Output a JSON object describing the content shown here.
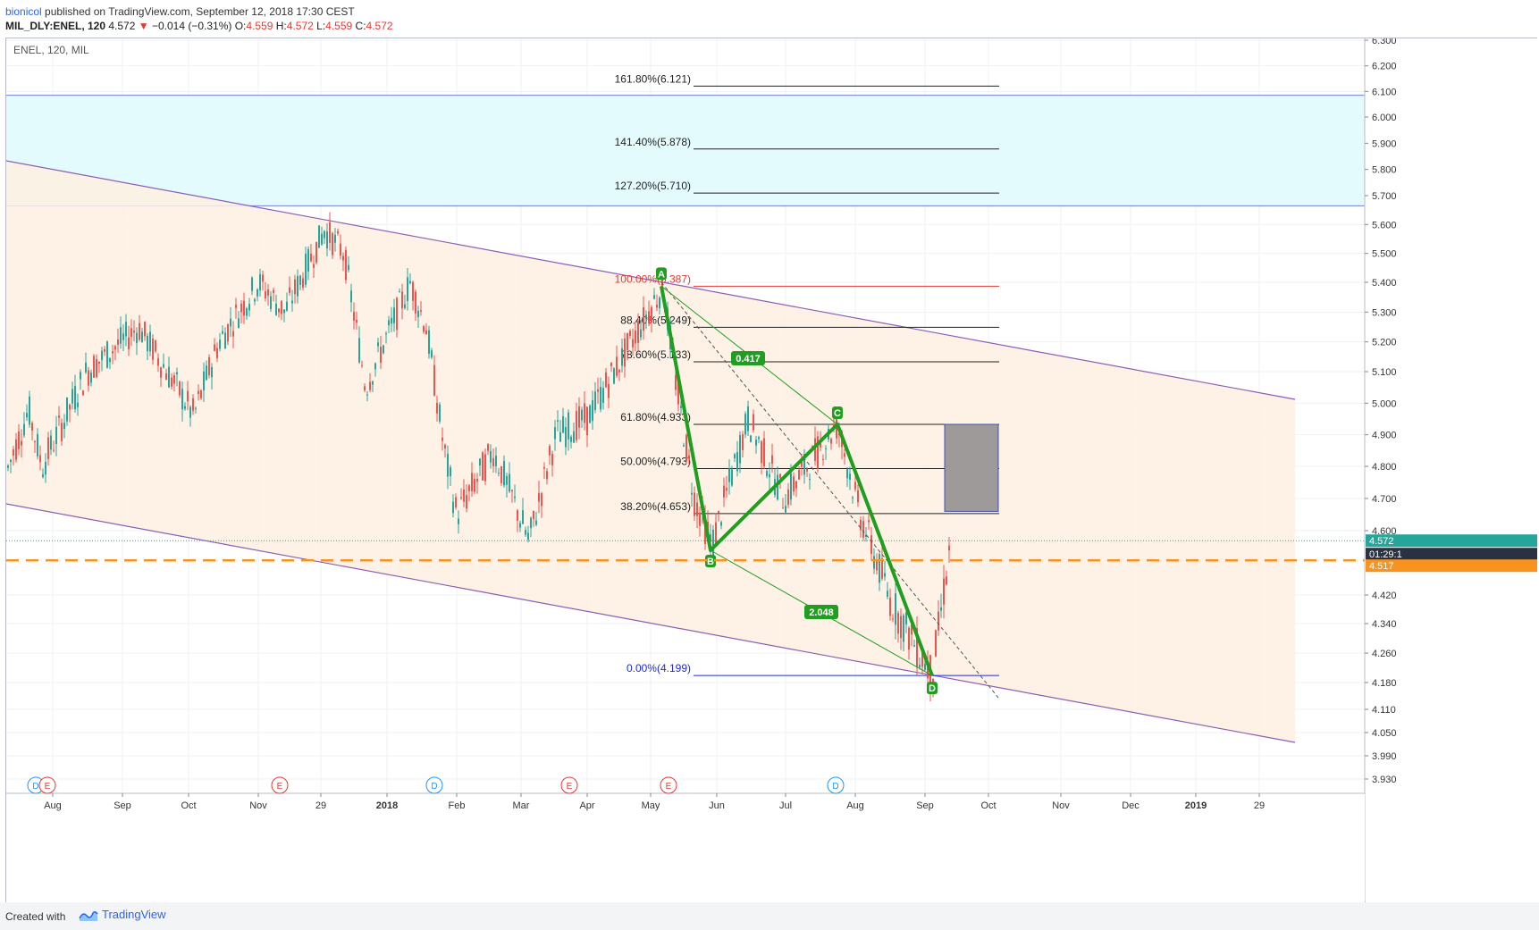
{
  "header": {
    "user": "bionicol",
    "published": " published on TradingView.com, September 12, 2018 17:30 CEST",
    "symbol": "MIL_DLY:ENEL, 120",
    "last": " 4.572 ",
    "arrow": "▼",
    "change": "−0.014 (−0.31%)",
    "o_label": " O:",
    "o_value": "4.559",
    "h_label": " H:",
    "h_value": "4.572",
    "l_label": " L:",
    "l_value": "4.559",
    "c_label": " C:",
    "c_value": "4.572"
  },
  "chart_title": "ENEL, 120, MIL",
  "footer": {
    "created": "Created with",
    "brand": "TradingView"
  },
  "colors": {
    "up": "#26a69a",
    "down": "#ef5350",
    "pattern": "#1f9e1f",
    "channel": "#8e5db4",
    "channel_fill": "#fdf0e1",
    "resistance_fill": "#e3fbfc",
    "support_line": "#f7931e",
    "box_fill": "#9e9a9a",
    "fib_top": "#e53935",
    "fib_bottom": "#1e2adb",
    "price_tag": "#26a69a"
  },
  "chart_data": {
    "type": "candlestick",
    "symbol": "MIL_DLY:ENEL",
    "interval": "120",
    "ylim": [
      3.88,
      6.32
    ],
    "y_ticks": [
      "6.300",
      "6.200",
      "6.100",
      "6.000",
      "5.900",
      "5.800",
      "5.700",
      "5.600",
      "5.500",
      "5.400",
      "5.300",
      "5.200",
      "5.100",
      "5.000",
      "4.900",
      "4.800",
      "4.700",
      "4.600",
      "4.420",
      "4.340",
      "4.260",
      "4.180",
      "4.110",
      "4.050",
      "3.990",
      "3.930"
    ],
    "x_ticks": [
      "Aug",
      "Sep",
      "Oct",
      "Nov",
      "29",
      "2018",
      "Feb",
      "Mar",
      "Apr",
      "May",
      "Jun",
      "Jul",
      "Aug",
      "Sep",
      "Oct",
      "Nov",
      "Dec",
      "2019",
      "29"
    ],
    "x_ticks_bold": [
      "2018",
      "2019"
    ],
    "price_path": [
      [
        "Jul 2017",
        4.78
      ],
      [
        "early Aug",
        4.98
      ],
      [
        "mid Aug",
        4.8
      ],
      [
        "Sep",
        5.1
      ],
      [
        "mid Sep",
        5.25
      ],
      [
        "Oct",
        4.96
      ],
      [
        "mid Oct",
        5.2
      ],
      [
        "Nov",
        5.4
      ],
      [
        "mid Nov",
        5.3
      ],
      [
        "late Nov",
        5.58
      ],
      [
        "early Dec",
        5.5
      ],
      [
        "Dec",
        5.05
      ],
      [
        "late Dec",
        5.4
      ],
      [
        "Jan",
        5.25
      ],
      [
        "mid Jan",
        4.85
      ],
      [
        "Feb",
        4.65
      ],
      [
        "Feb",
        4.85
      ],
      [
        "Mar",
        4.57
      ],
      [
        "Mar",
        4.9
      ],
      [
        "Apr",
        4.95
      ],
      [
        "Apr",
        5.15
      ],
      [
        "May",
        5.387
      ],
      [
        "mid May",
        5.05
      ],
      [
        "late May",
        4.7
      ],
      [
        "Jun",
        4.56
      ],
      [
        "Jun",
        4.95
      ],
      [
        "Jul",
        4.7
      ],
      [
        "late Jul",
        4.933
      ],
      [
        "Aug",
        4.65
      ],
      [
        "Aug",
        4.4
      ],
      [
        "Sep",
        4.199
      ],
      [
        "Sep",
        4.572
      ]
    ],
    "last_price": "4.572",
    "countdown": "01:29:1",
    "support_level": "4.517",
    "harmonic_pattern": {
      "points": [
        {
          "label": "A",
          "value": 5.387
        },
        {
          "label": "B",
          "value": 4.56
        },
        {
          "label": "C",
          "value": 4.933
        },
        {
          "label": "D",
          "value": 4.199
        }
      ],
      "ratios": [
        "0.417",
        "2.048"
      ]
    },
    "fib_levels": [
      {
        "label": "161.80%(6.121)",
        "value": 6.121
      },
      {
        "label": "141.40%(5.878)",
        "value": 5.878
      },
      {
        "label": "127.20%(5.710)",
        "value": 5.71
      },
      {
        "label": "100.00%(5.387)",
        "value": 5.387
      },
      {
        "label": "88.40%(5.249)",
        "value": 5.249
      },
      {
        "label": "78.60%(5.133)",
        "value": 5.133
      },
      {
        "label": "61.80%(4.933)",
        "value": 4.933
      },
      {
        "label": "50.00%(4.793)",
        "value": 4.793
      },
      {
        "label": "38.20%(4.653)",
        "value": 4.653
      },
      {
        "label": "0.00%(4.199)",
        "value": 4.199
      }
    ],
    "resistance_zone": [
      5.665,
      6.085
    ],
    "target_box": [
      4.66,
      4.933
    ],
    "events": [
      {
        "label": "D",
        "color": "#2196f3"
      },
      {
        "label": "E",
        "color": "#e53935"
      },
      {
        "label": "E",
        "color": "#e53935"
      },
      {
        "label": "D",
        "color": "#2196f3"
      },
      {
        "label": "E",
        "color": "#e53935"
      },
      {
        "label": "E",
        "color": "#e53935"
      },
      {
        "label": "D",
        "color": "#2196f3"
      }
    ]
  }
}
